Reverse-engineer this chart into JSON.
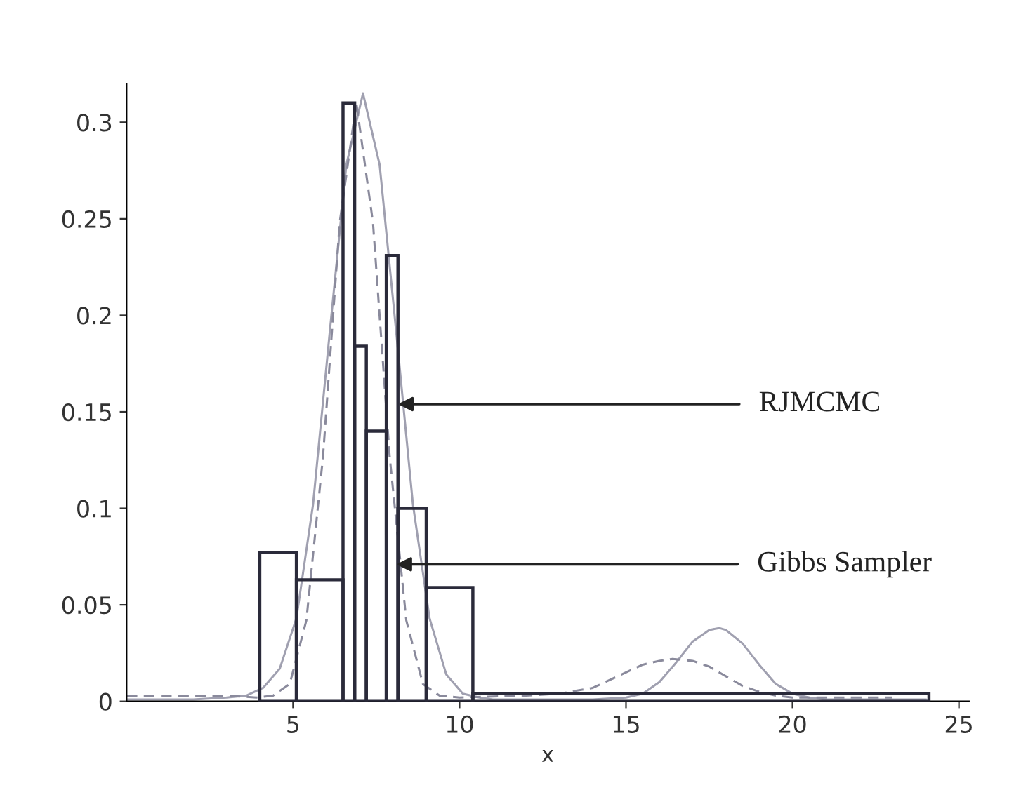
{
  "chart_data": {
    "type": "histogram",
    "xlabel": "x",
    "bins": [
      4.0,
      5.1,
      6.5,
      6.85,
      7.2,
      7.8,
      8.15,
      9.0,
      10.4,
      24.1
    ],
    "values": [
      0.077,
      0.063,
      0.31,
      0.184,
      0.14,
      0.231,
      0.1,
      0.059,
      0.004
    ],
    "color": "#2a2a3a",
    "series": [
      {
        "type": "line",
        "line_style": "solid",
        "color": "#a0a0b0",
        "x": [
          0,
          2,
          3,
          3.6,
          4.1,
          4.6,
          5.1,
          5.6,
          6.1,
          6.6,
          7.1,
          7.6,
          8.1,
          8.6,
          9.1,
          9.6,
          10.1,
          10.6,
          11,
          12,
          14,
          15,
          15.5,
          16,
          16.5,
          17,
          17.5,
          17.8,
          18,
          18.5,
          19,
          19.5,
          20,
          20.5,
          21,
          24
        ],
        "values": [
          0.001,
          0.001,
          0.002,
          0.003,
          0.007,
          0.017,
          0.043,
          0.102,
          0.191,
          0.278,
          0.315,
          0.278,
          0.191,
          0.102,
          0.043,
          0.014,
          0.004,
          0.002,
          0.001,
          0.001,
          0.001,
          0.002,
          0.004,
          0.01,
          0.02,
          0.031,
          0.037,
          0.038,
          0.037,
          0.03,
          0.019,
          0.009,
          0.004,
          0.002,
          0.001,
          0.001
        ]
      },
      {
        "type": "line",
        "line_style": "dashed",
        "color": "#8a8a9c",
        "x": [
          0,
          3,
          3.9,
          4.4,
          4.9,
          5.4,
          5.9,
          6.4,
          6.9,
          7.4,
          7.9,
          8.4,
          8.9,
          9.4,
          10,
          12,
          13,
          14,
          14.5,
          15,
          15.5,
          16,
          16.4,
          17,
          17.5,
          18,
          18.5,
          19,
          19.5,
          20,
          23
        ],
        "values": [
          0.003,
          0.003,
          0.002,
          0.003,
          0.009,
          0.042,
          0.127,
          0.248,
          0.31,
          0.248,
          0.127,
          0.042,
          0.009,
          0.003,
          0.002,
          0.003,
          0.004,
          0.007,
          0.011,
          0.015,
          0.019,
          0.021,
          0.022,
          0.021,
          0.018,
          0.013,
          0.008,
          0.005,
          0.003,
          0.002,
          0.002
        ]
      }
    ],
    "xlim": [
      0,
      25.3
    ],
    "ylim": [
      0,
      0.32
    ],
    "xticks": [
      5,
      10,
      15,
      20,
      25
    ],
    "yticks": [
      {
        "value": 0,
        "label": "0"
      },
      0.05,
      0.1,
      0.15,
      0.2,
      0.25,
      0.3
    ],
    "grid": false,
    "legend": false,
    "annotations": [
      {
        "text": "RJMCMC",
        "x": 8.15,
        "y": 0.154
      },
      {
        "text": "Gibbs Sampler",
        "x": 8.1,
        "y": 0.071
      }
    ]
  }
}
